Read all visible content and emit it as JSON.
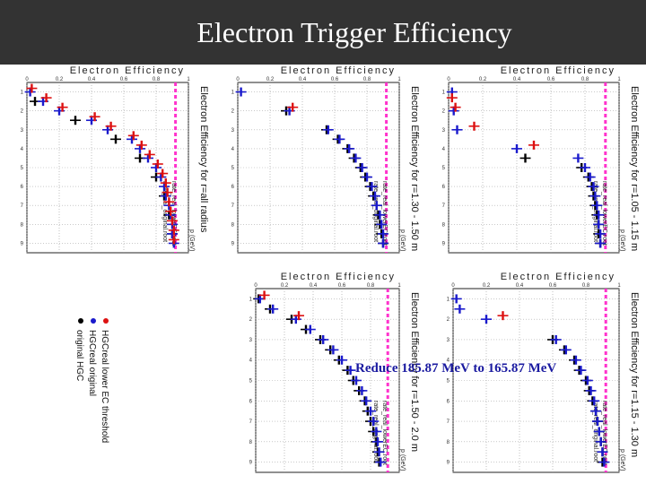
{
  "slide": {
    "title": "Electron Trigger Efficiency",
    "annotation": "Reduce 185.87 MeV to 165.87 MeV"
  },
  "colors": {
    "title_bg": "#333333",
    "title_text": "#ffffff",
    "threshold_line": "#ff33cc",
    "series_original": "#000000",
    "series_real": "#1a1acc",
    "series_lower": "#dd1111",
    "annotation": "#1a1aa0"
  },
  "legend": {
    "items": [
      {
        "label": "original HGC",
        "color": "#000000"
      },
      {
        "label": "HGCreal original",
        "color": "#1a1acc"
      },
      {
        "label": "HGCreal lower EC threshold",
        "color": "#dd1111"
      }
    ]
  },
  "chart_data": [
    {
      "type": "scatter",
      "title": "Electron Efficiency",
      "ylabel": "Electron Efficiency for r=all radius",
      "xlabel": "p (GeV)",
      "subtext": [
        "rate_real_original.root",
        "rate_real_lowerEC.root"
      ],
      "x_ticks": [
        "1",
        "2",
        "3",
        "4",
        "5",
        "6",
        "7",
        "8",
        "9"
      ],
      "eff_ticks": [
        "0",
        "0.2",
        "0.4",
        "0.6",
        "0.8",
        "1"
      ],
      "xlim": [
        0.5,
        9.5
      ],
      "efflim": [
        0,
        1
      ],
      "threshold": 0.92,
      "series": [
        {
          "name": "original HGC",
          "p": [
            1.5,
            2.5,
            3.5,
            4.5,
            5.5,
            6.5,
            7.5,
            8.5
          ],
          "eff": [
            0.05,
            0.3,
            0.55,
            0.7,
            0.8,
            0.85,
            0.88,
            0.9
          ]
        },
        {
          "name": "HGCreal original",
          "p": [
            1,
            1.5,
            2,
            2.5,
            3,
            3.5,
            4,
            4.5,
            5,
            5.5,
            6,
            6.5,
            7,
            7.5,
            8,
            8.5,
            9
          ],
          "eff": [
            0.02,
            0.1,
            0.2,
            0.4,
            0.5,
            0.65,
            0.7,
            0.75,
            0.8,
            0.83,
            0.85,
            0.86,
            0.88,
            0.89,
            0.9,
            0.9,
            0.91
          ]
        },
        {
          "name": "HGCreal lower EC threshold",
          "p": [
            1,
            1.5,
            2,
            2.5,
            3,
            3.5,
            4,
            4.5,
            5,
            5.5,
            6,
            6.5,
            7,
            7.5,
            8,
            8.5,
            9
          ],
          "eff": [
            0.03,
            0.12,
            0.22,
            0.42,
            0.52,
            0.66,
            0.71,
            0.76,
            0.81,
            0.84,
            0.86,
            0.87,
            0.88,
            0.89,
            0.9,
            0.91,
            0.91
          ]
        }
      ]
    },
    {
      "type": "scatter",
      "title": "Electron Efficiency",
      "ylabel": "Electron Efficiency for r=1.30 - 1.50 m",
      "xlabel": "p (GeV)",
      "subtext": [
        "rate_real_original.root",
        "rate_real_lowerEC.root"
      ],
      "x_ticks": [
        "1",
        "2",
        "3",
        "4",
        "5",
        "6",
        "7",
        "8",
        "9"
      ],
      "eff_ticks": [
        "0",
        "0.2",
        "0.4",
        "0.6",
        "0.8",
        "1"
      ],
      "xlim": [
        0.5,
        9.5
      ],
      "efflim": [
        0,
        1
      ],
      "threshold": 0.92,
      "series": [
        {
          "name": "original HGC",
          "p": [
            2,
            3,
            3.5,
            4,
            4.5,
            5,
            5.5,
            6,
            6.5,
            7,
            7.5,
            8,
            8.5,
            9
          ],
          "eff": [
            0.3,
            0.55,
            0.62,
            0.68,
            0.72,
            0.76,
            0.79,
            0.82,
            0.84,
            0.86,
            0.87,
            0.88,
            0.89,
            0.9
          ]
        },
        {
          "name": "HGCreal original",
          "p": [
            1,
            2,
            3,
            3.5,
            4,
            4.5,
            5,
            5.5,
            6,
            6.5,
            7,
            7.5,
            8,
            8.5,
            9
          ],
          "eff": [
            0.02,
            0.32,
            0.56,
            0.63,
            0.69,
            0.73,
            0.77,
            0.8,
            0.83,
            0.85,
            0.86,
            0.88,
            0.89,
            0.9,
            0.9
          ]
        },
        {
          "name": "HGCreal lower EC threshold",
          "p": [
            2
          ],
          "eff": [
            0.34
          ]
        }
      ]
    },
    {
      "type": "scatter",
      "title": "Electron Efficiency",
      "ylabel": "Electron Efficiency for r=1.05 - 1.15 m",
      "xlabel": "p (GeV)",
      "subtext": [
        "rate_real_original.root",
        "rate_real_lowerEC.root"
      ],
      "x_ticks": [
        "1",
        "2",
        "3",
        "4",
        "5",
        "6",
        "7",
        "8",
        "9"
      ],
      "eff_ticks": [
        "0",
        "0.2",
        "0.4",
        "0.6",
        "0.8",
        "1"
      ],
      "xlim": [
        0.5,
        9.5
      ],
      "efflim": [
        0,
        1
      ],
      "threshold": 0.92,
      "series": [
        {
          "name": "original HGC",
          "p": [
            4.5,
            5,
            5.5,
            6,
            6.5,
            7,
            7.5,
            8,
            8.5,
            9
          ],
          "eff": [
            0.45,
            0.78,
            0.82,
            0.84,
            0.85,
            0.86,
            0.87,
            0.88,
            0.88,
            0.89
          ]
        },
        {
          "name": "HGCreal original",
          "p": [
            1,
            2,
            3,
            4,
            4.5,
            5,
            5.5,
            6,
            6.5,
            7,
            7.5,
            8,
            8.5,
            9
          ],
          "eff": [
            0.02,
            0.03,
            0.05,
            0.4,
            0.76,
            0.8,
            0.83,
            0.85,
            0.86,
            0.87,
            0.88,
            0.88,
            0.89,
            0.89
          ]
        },
        {
          "name": "HGCreal lower EC threshold",
          "p": [
            1.5,
            2,
            3,
            4
          ],
          "eff": [
            0.02,
            0.04,
            0.15,
            0.5
          ]
        }
      ]
    },
    {
      "type": "scatter",
      "title": "Electron Efficiency",
      "ylabel": "Electron Efficiency for r=1.50 - 2.0 m",
      "xlabel": "p (GeV)",
      "subtext": [
        "rate_real_original.root",
        "rate_real_lowerEC.root"
      ],
      "x_ticks": [
        "1",
        "2",
        "3",
        "4",
        "5",
        "6",
        "7",
        "8",
        "9"
      ],
      "eff_ticks": [
        "0",
        "0.2",
        "0.4",
        "0.6",
        "0.8",
        "1"
      ],
      "xlim": [
        0.5,
        9.5
      ],
      "efflim": [
        0,
        1
      ],
      "threshold": 0.92,
      "series": [
        {
          "name": "original HGC",
          "p": [
            1,
            1.5,
            2,
            2.5,
            3,
            3.5,
            4,
            4.5,
            5,
            5.5,
            6,
            6.5,
            7,
            7.5,
            8,
            8.5,
            9
          ],
          "eff": [
            0.02,
            0.1,
            0.25,
            0.35,
            0.45,
            0.52,
            0.58,
            0.64,
            0.68,
            0.72,
            0.76,
            0.78,
            0.8,
            0.82,
            0.84,
            0.85,
            0.86
          ]
        },
        {
          "name": "HGCreal original",
          "p": [
            1,
            1.5,
            2,
            2.5,
            3,
            3.5,
            4,
            4.5,
            5,
            5.5,
            6,
            6.5,
            7,
            7.5,
            8,
            8.5,
            9
          ],
          "eff": [
            0.03,
            0.12,
            0.28,
            0.38,
            0.47,
            0.54,
            0.6,
            0.66,
            0.7,
            0.74,
            0.77,
            0.8,
            0.82,
            0.84,
            0.85,
            0.86,
            0.87
          ]
        },
        {
          "name": "HGCreal lower EC threshold",
          "p": [
            1,
            2
          ],
          "eff": [
            0.06,
            0.3
          ]
        }
      ]
    },
    {
      "type": "scatter",
      "title": "Electron Efficiency",
      "ylabel": "Electron Efficiency for r=1.15 - 1.30 m",
      "xlabel": "p (GeV)",
      "subtext": [
        "rate_real_original.root",
        "rate_real_lowerEC.root"
      ],
      "x_ticks": [
        "1",
        "2",
        "3",
        "4",
        "5",
        "6",
        "7",
        "8",
        "9"
      ],
      "eff_ticks": [
        "0",
        "0.2",
        "0.4",
        "0.6",
        "0.8",
        "1"
      ],
      "xlim": [
        0.5,
        9.5
      ],
      "efflim": [
        0,
        1
      ],
      "threshold": 0.92,
      "series": [
        {
          "name": "original HGC",
          "p": [
            3,
            3.5,
            4,
            4.5,
            5,
            5.5,
            6,
            6.5,
            7,
            7.5,
            8,
            8.5,
            9
          ],
          "eff": [
            0.6,
            0.67,
            0.73,
            0.76,
            0.8,
            0.82,
            0.84,
            0.86,
            0.87,
            0.88,
            0.89,
            0.9,
            0.9
          ]
        },
        {
          "name": "HGCreal original",
          "p": [
            1,
            1.5,
            2,
            3,
            3.5,
            4,
            4.5,
            5,
            5.5,
            6,
            6.5,
            7,
            7.5,
            8,
            8.5,
            9
          ],
          "eff": [
            0.02,
            0.04,
            0.2,
            0.62,
            0.68,
            0.74,
            0.77,
            0.81,
            0.83,
            0.85,
            0.86,
            0.87,
            0.88,
            0.89,
            0.9,
            0.91
          ]
        },
        {
          "name": "HGCreal lower EC threshold",
          "p": [
            2
          ],
          "eff": [
            0.3
          ]
        }
      ]
    }
  ]
}
